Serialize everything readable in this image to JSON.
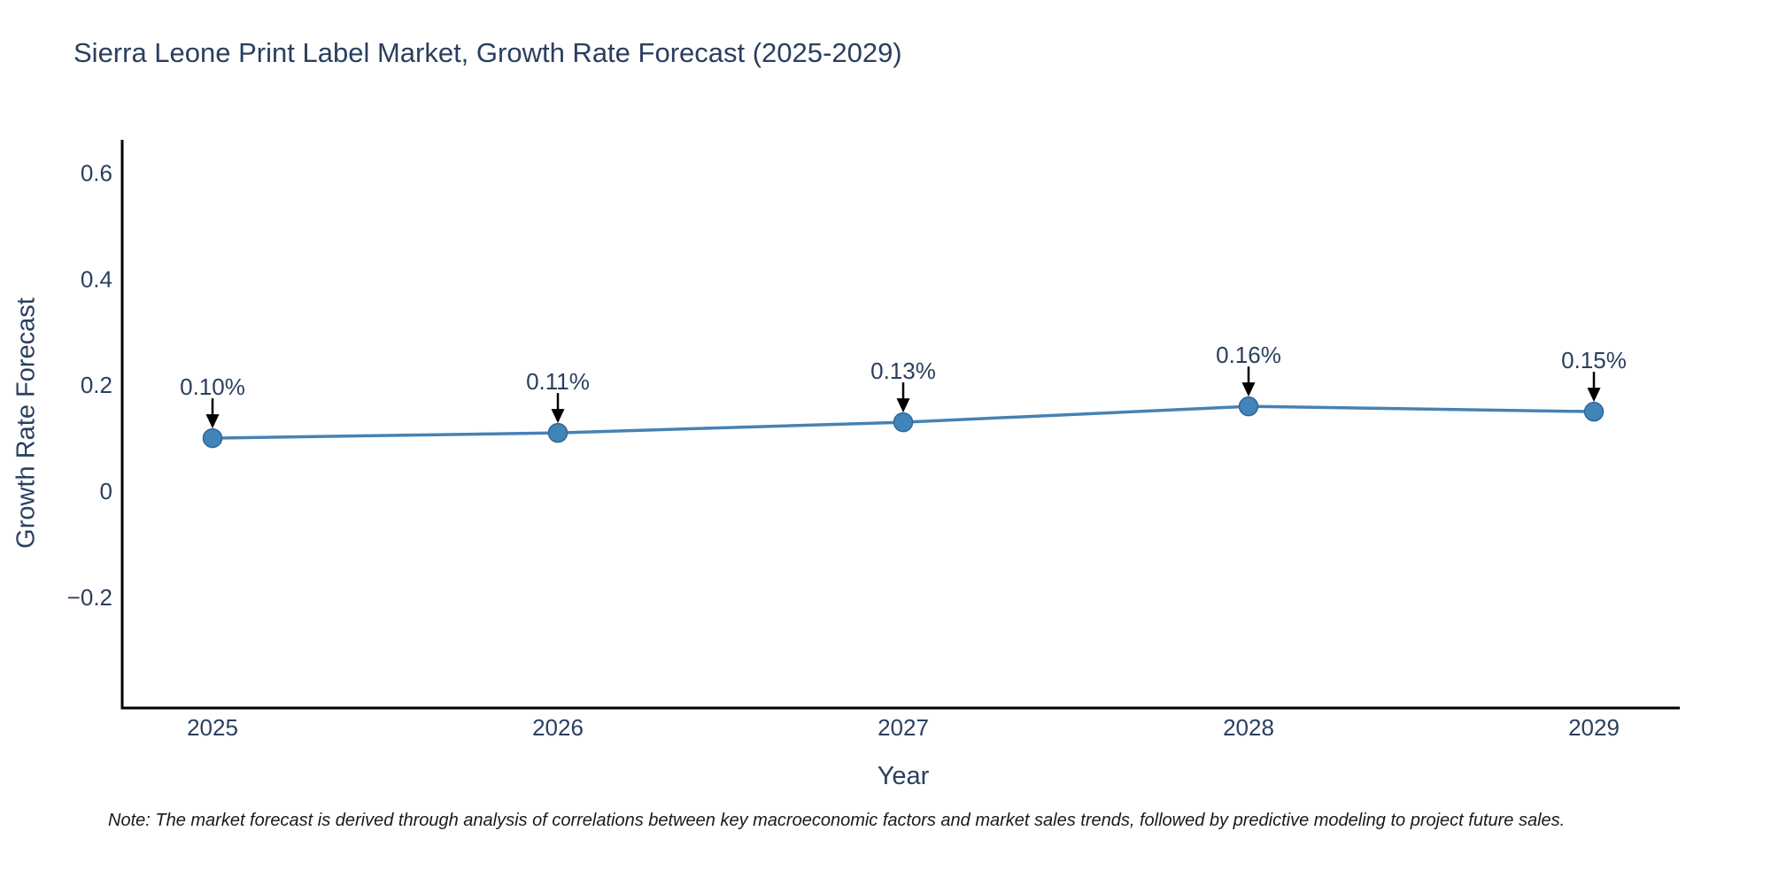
{
  "note": "Note: The market forecast is derived through analysis of correlations between key macroeconomic factors and market sales trends, followed by predictive modeling to project future sales.",
  "chart_data": {
    "type": "line",
    "title": "Sierra Leone Print Label Market, Growth Rate Forecast (2025-2029)",
    "xlabel": "Year",
    "ylabel": "Growth Rate Forecast",
    "x": [
      2025,
      2026,
      2027,
      2028,
      2029
    ],
    "series": [
      {
        "name": "Growth Rate Forecast",
        "values": [
          0.1,
          0.11,
          0.13,
          0.16,
          0.15
        ]
      }
    ],
    "point_labels": [
      "0.10%",
      "0.11%",
      "0.13%",
      "0.16%",
      "0.15%"
    ],
    "xticks": [
      "2025",
      "2026",
      "2027",
      "2028",
      "2029"
    ],
    "yticks": [
      "0.6",
      "0.4",
      "0.2",
      "0",
      "−0.2"
    ],
    "ylim": [
      -0.41,
      0.66
    ],
    "grid": false,
    "legend_visible": false,
    "annotation_arrows": true,
    "colors": {
      "line": "#4682b4",
      "marker": "#4184b8",
      "marker_edge": "#31669a",
      "axis": "#000000",
      "text": "#2a3f5f",
      "annotation": "#2a3f5f",
      "arrow": "#000000",
      "note_text": "#1a1a1a",
      "background": "#ffffff"
    }
  }
}
